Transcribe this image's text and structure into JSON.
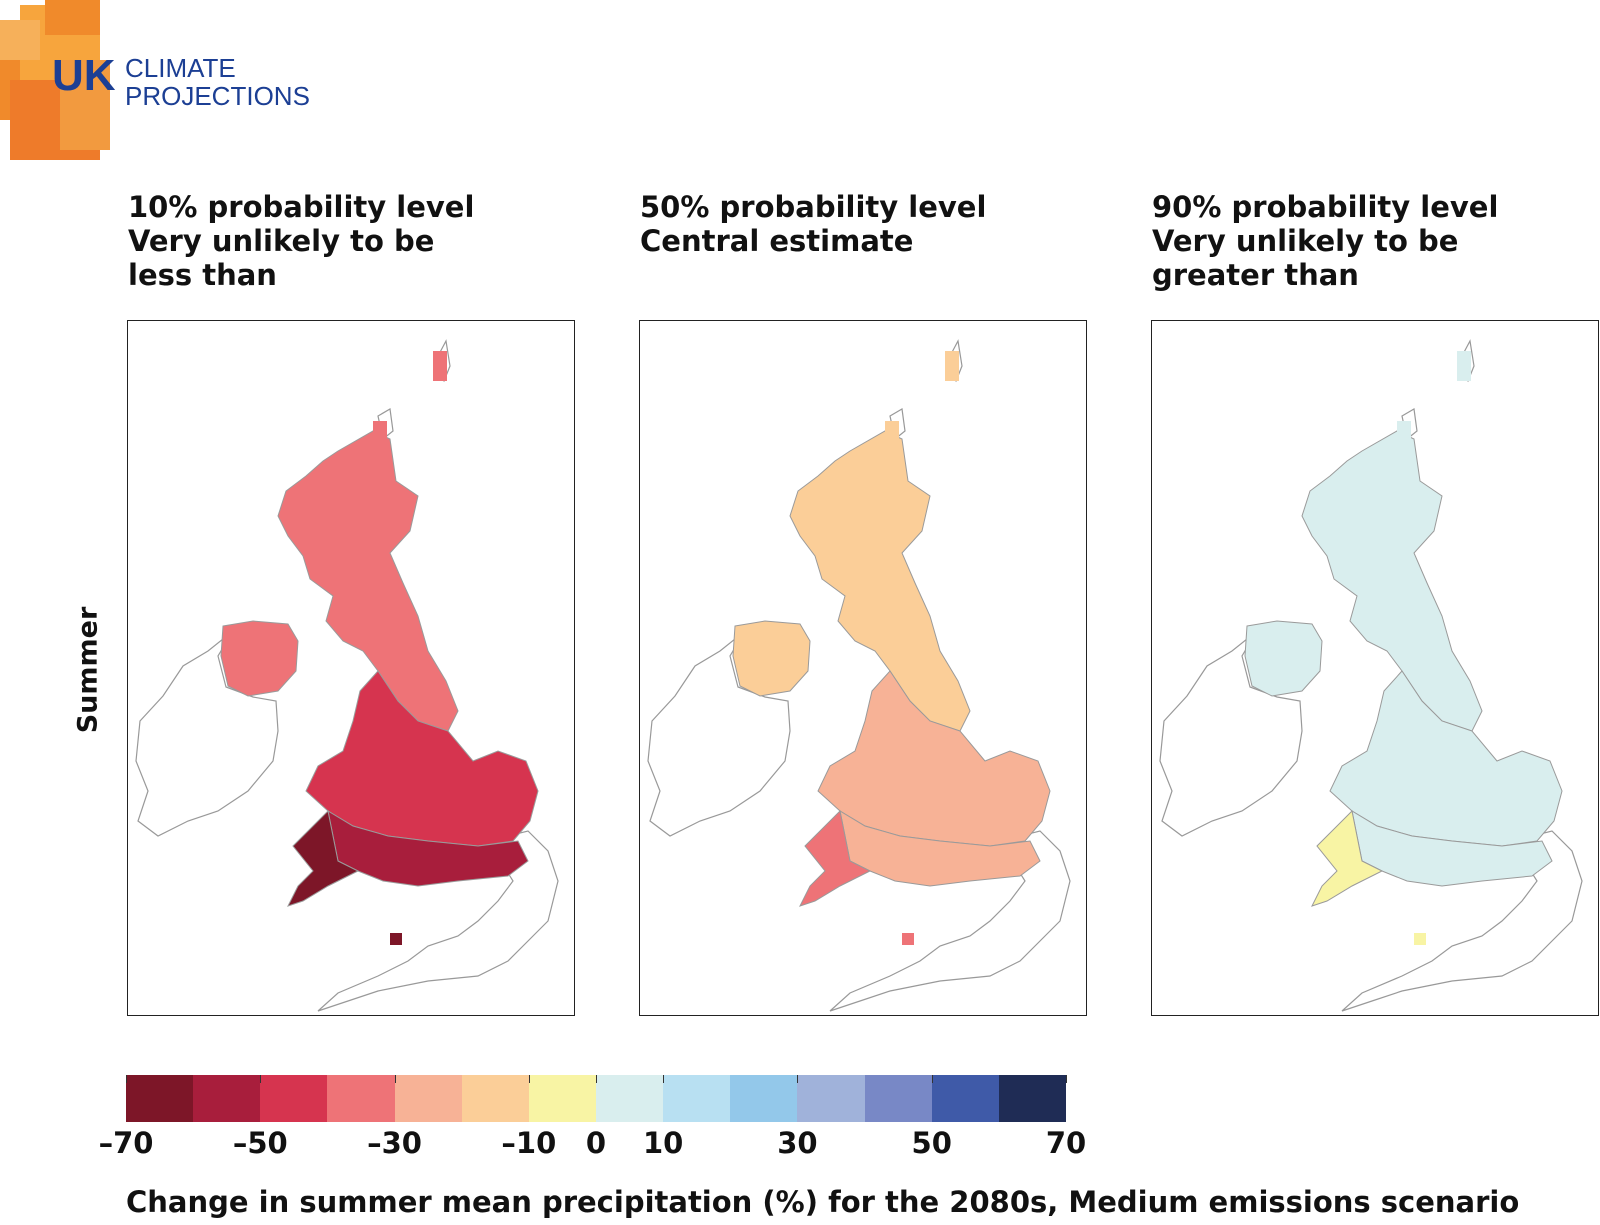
{
  "logo": {
    "text_line1": "UK",
    "text_line2": "CLIMATE",
    "text_line3": "PROJECTIONS"
  },
  "panels": [
    {
      "title_lines": [
        "10% probability level",
        "Very unlikely to be",
        "less than"
      ]
    },
    {
      "title_lines": [
        "50% probability level",
        "Central estimate"
      ]
    },
    {
      "title_lines": [
        "90% probability level",
        "Very unlikely to be",
        "greater than"
      ]
    }
  ],
  "season_label": "Summer",
  "legend": {
    "colors": [
      "#7d1628",
      "#a81e3c",
      "#d6344f",
      "#ee7377",
      "#f7b296",
      "#fbce98",
      "#f8f4a4",
      "#d9eeee",
      "#b8e0f2",
      "#93c8ea",
      "#a0b2da",
      "#7888c6",
      "#3f5aa8",
      "#1f2c55"
    ],
    "ticks": [
      "–70",
      "–50",
      "–30",
      "–10",
      "0",
      "10",
      "30",
      "50",
      "70"
    ],
    "tick_values": [
      -70,
      -50,
      -30,
      -10,
      0,
      10,
      30,
      50,
      70
    ],
    "range": [
      -70,
      70
    ]
  },
  "caption": "Change in summer mean precipitation (%) for the 2080s, Medium emissions scenario",
  "map_colors": {
    "p10": {
      "north": "#ee7377",
      "midlands": "#d6344f",
      "south": "#a81e3c",
      "southwest": "#7d1628",
      "ni": "#ee7377"
    },
    "p50": {
      "north": "#fbce98",
      "midlands": "#f7b296",
      "south": "#f7b296",
      "southwest": "#ee7377",
      "ni": "#fbce98"
    },
    "p90": {
      "north": "#d9eeee",
      "midlands": "#d9eeee",
      "south": "#d9eeee",
      "southwest": "#f8f4a4",
      "ni": "#d9eeee"
    }
  }
}
